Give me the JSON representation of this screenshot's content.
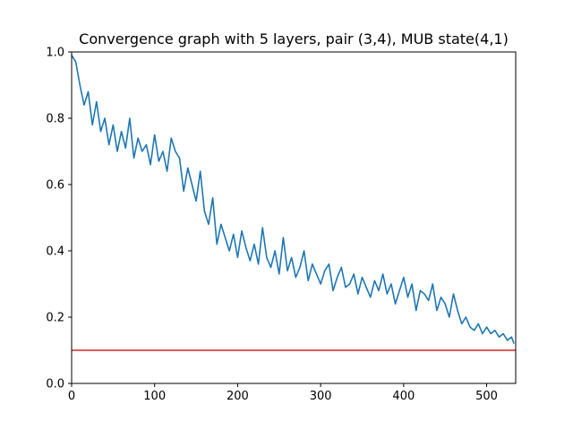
{
  "chart_data": {
    "type": "line",
    "title": "Convergence graph with 5 layers, pair (3,4), MUB state(4,1)",
    "xlabel": "",
    "ylabel": "",
    "xlim": [
      0,
      535
    ],
    "ylim": [
      0.0,
      1.0
    ],
    "x_ticks": [
      0,
      100,
      200,
      300,
      400,
      500
    ],
    "x_tick_labels": [
      "0",
      "100",
      "200",
      "300",
      "400",
      "500"
    ],
    "y_ticks": [
      0.0,
      0.2,
      0.4,
      0.6,
      0.8,
      1.0
    ],
    "y_tick_labels": [
      "0.0",
      "0.2",
      "0.4",
      "0.6",
      "0.8",
      "1.0"
    ],
    "grid": false,
    "series": [
      {
        "color": "#1f77b4",
        "x": [
          0,
          5,
          10,
          15,
          20,
          25,
          30,
          35,
          40,
          45,
          50,
          55,
          60,
          65,
          70,
          75,
          80,
          85,
          90,
          95,
          100,
          105,
          110,
          115,
          120,
          125,
          130,
          135,
          140,
          145,
          150,
          155,
          160,
          165,
          170,
          175,
          180,
          185,
          190,
          195,
          200,
          205,
          210,
          215,
          220,
          225,
          230,
          235,
          240,
          245,
          250,
          255,
          260,
          265,
          270,
          275,
          280,
          285,
          290,
          295,
          300,
          305,
          310,
          315,
          320,
          325,
          330,
          335,
          340,
          345,
          350,
          355,
          360,
          365,
          370,
          375,
          380,
          385,
          390,
          395,
          400,
          405,
          410,
          415,
          420,
          425,
          430,
          435,
          440,
          445,
          450,
          455,
          460,
          465,
          470,
          475,
          480,
          485,
          490,
          495,
          500,
          505,
          510,
          515,
          520,
          525,
          530,
          533
        ],
        "y": [
          0.99,
          0.97,
          0.9,
          0.84,
          0.88,
          0.78,
          0.85,
          0.76,
          0.8,
          0.72,
          0.78,
          0.7,
          0.76,
          0.71,
          0.8,
          0.68,
          0.74,
          0.7,
          0.72,
          0.66,
          0.75,
          0.67,
          0.7,
          0.64,
          0.74,
          0.7,
          0.68,
          0.58,
          0.65,
          0.6,
          0.55,
          0.64,
          0.52,
          0.48,
          0.56,
          0.42,
          0.48,
          0.44,
          0.4,
          0.45,
          0.38,
          0.46,
          0.41,
          0.37,
          0.42,
          0.36,
          0.47,
          0.38,
          0.35,
          0.4,
          0.33,
          0.44,
          0.34,
          0.38,
          0.32,
          0.35,
          0.4,
          0.31,
          0.36,
          0.33,
          0.3,
          0.34,
          0.36,
          0.28,
          0.32,
          0.35,
          0.29,
          0.3,
          0.33,
          0.27,
          0.32,
          0.29,
          0.26,
          0.31,
          0.28,
          0.33,
          0.27,
          0.3,
          0.24,
          0.28,
          0.32,
          0.26,
          0.3,
          0.22,
          0.28,
          0.27,
          0.25,
          0.3,
          0.22,
          0.26,
          0.24,
          0.2,
          0.27,
          0.22,
          0.18,
          0.2,
          0.17,
          0.16,
          0.18,
          0.15,
          0.17,
          0.15,
          0.16,
          0.14,
          0.15,
          0.13,
          0.14,
          0.12
        ]
      },
      {
        "color": "#d62728",
        "x": [
          0,
          535
        ],
        "y": [
          0.1,
          0.1
        ]
      }
    ]
  }
}
